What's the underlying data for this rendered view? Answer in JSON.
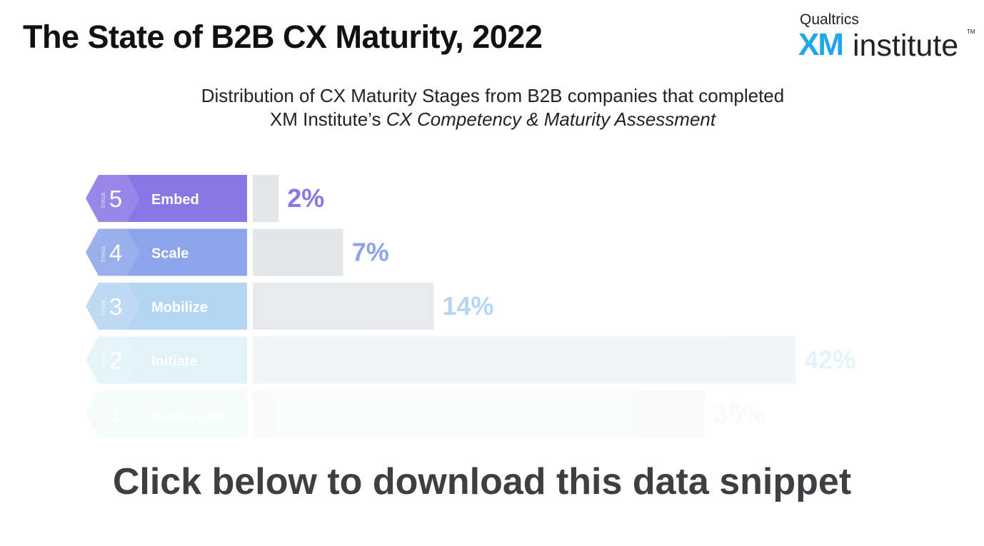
{
  "header": {
    "title": "The State of B2B CX Maturity, 2022",
    "logo_top": "Qualtrics",
    "logo_xm": "XM",
    "logo_rest": "institute",
    "logo_tm": "TM"
  },
  "subtitle": {
    "line1": "Distribution of CX Maturity Stages from B2B companies that completed",
    "line2_prefix": "XM Institute’s ",
    "line2_italic": "CX Competency & Maturity Assessment"
  },
  "chart_data": {
    "type": "bar",
    "orientation": "horizontal",
    "stage_label": "STAGE",
    "categories": [
      "Embed",
      "Scale",
      "Mobilize",
      "Initiate",
      "Investigate"
    ],
    "stage_numbers": [
      "5",
      "4",
      "3",
      "2",
      "1"
    ],
    "values": [
      2,
      7,
      14,
      42,
      35
    ],
    "value_labels": [
      "2%",
      "7%",
      "14%",
      "42%",
      "35%"
    ],
    "colors": [
      "#8a77e6",
      "#8da4ea",
      "#a9d0f0",
      "#bfe4ef",
      "#c9efe2"
    ],
    "label_colors": [
      "#8a77e6",
      "#8da4ea",
      "#a9d0f0",
      "#c8e8f2",
      "#d4efe6"
    ],
    "opacities": [
      1,
      1,
      0.85,
      0.45,
      0.18
    ],
    "bar_color": "#e4e7ea"
  },
  "cta": {
    "text": "Click below to download this data snippet"
  }
}
